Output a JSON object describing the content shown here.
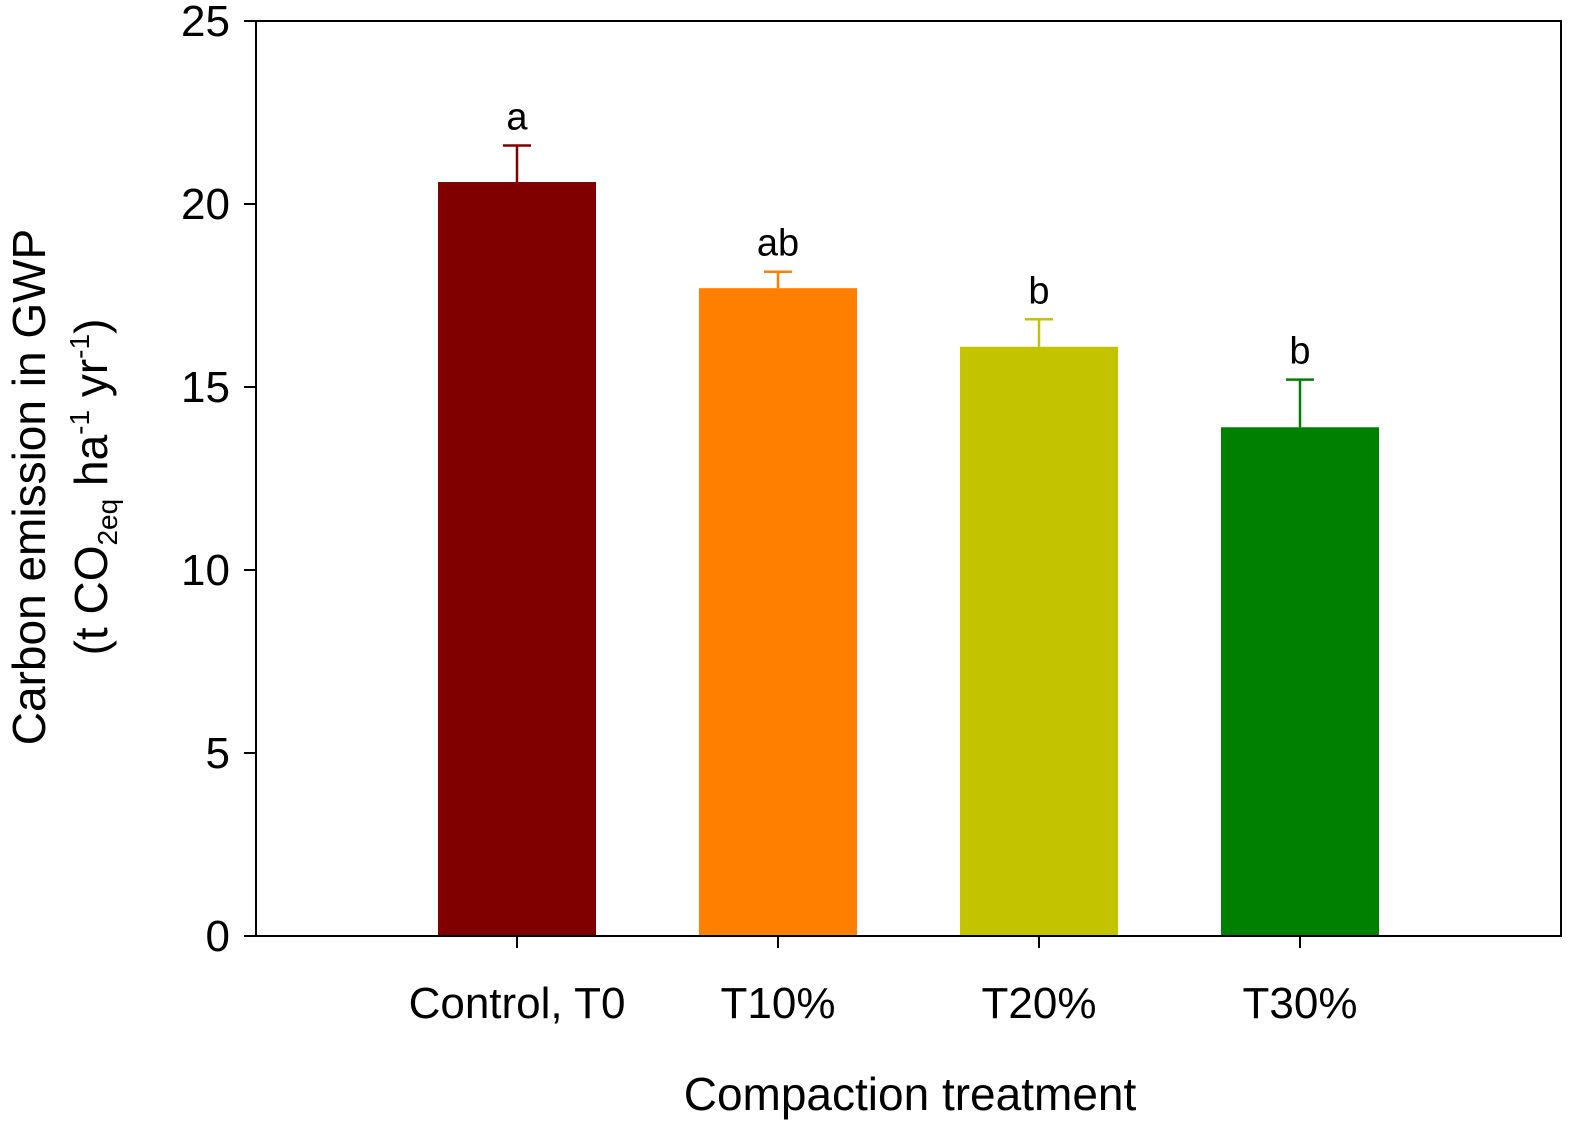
{
  "chart_data": {
    "type": "bar",
    "categories": [
      "Control, T0",
      "T10%",
      "T20%",
      "T30%"
    ],
    "values": [
      20.6,
      17.7,
      16.1,
      13.9
    ],
    "errors": [
      1.0,
      0.45,
      0.75,
      1.3
    ],
    "significance": [
      "a",
      "ab",
      "b",
      "b"
    ],
    "colors": [
      "#800000",
      "#ff8000",
      "#c3c300",
      "#008000"
    ],
    "xlabel": "Compaction treatment",
    "ylabel": {
      "line1": "Carbon emission in GWP",
      "open": "(t CO",
      "co2_sub": "2eq",
      "ha": " ha",
      "ha_sup": "-1",
      "yr": " yr",
      "yr_sup": "-1",
      "close": ")"
    },
    "ylim": [
      0,
      25
    ],
    "yticks": [
      "0",
      "5",
      "10",
      "15",
      "20",
      "25"
    ],
    "grid": false
  }
}
